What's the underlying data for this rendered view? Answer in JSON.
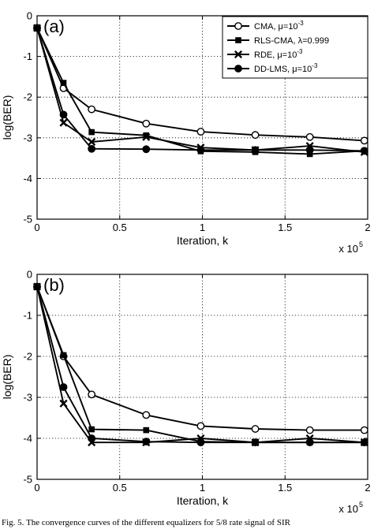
{
  "chart_data": [
    {
      "type": "line",
      "panel_label": "(a)",
      "xlabel": "Iteration, k",
      "ylabel": "log(BER)",
      "x_multiplier": "x 10",
      "x_multiplier_exponent": "5",
      "xlim": [
        0,
        2
      ],
      "ylim": [
        -5,
        0
      ],
      "xticks": [
        0,
        0.5,
        1,
        1.5,
        2
      ],
      "xtick_labels": [
        "0",
        "0.5",
        "1",
        "1.5",
        "2"
      ],
      "yticks": [
        0,
        -1,
        -2,
        -3,
        -4,
        -5
      ],
      "ytick_labels": [
        "0",
        "-1",
        "-2",
        "-3",
        "-4",
        "-5"
      ],
      "grid": true,
      "legend_position": "top-right",
      "series": [
        {
          "name": "CMA, μ=10",
          "superscript": "-3",
          "marker": "open-circle",
          "x": [
            0,
            0.16,
            0.33,
            0.66,
            0.99,
            1.32,
            1.65,
            1.98
          ],
          "y": [
            -0.3,
            -1.78,
            -2.3,
            -2.65,
            -2.85,
            -2.93,
            -2.98,
            -3.07
          ]
        },
        {
          "name": "RLS-CMA, λ=0.999",
          "superscript": "",
          "marker": "square",
          "x": [
            0,
            0.16,
            0.33,
            0.66,
            0.99,
            1.32,
            1.65,
            1.98
          ],
          "y": [
            -0.3,
            -1.65,
            -2.86,
            -2.94,
            -3.33,
            -3.35,
            -3.4,
            -3.32
          ]
        },
        {
          "name": "RDE, μ=10",
          "superscript": "-3",
          "marker": "x",
          "x": [
            0,
            0.16,
            0.33,
            0.66,
            0.99,
            1.32,
            1.65,
            1.98
          ],
          "y": [
            -0.3,
            -2.63,
            -3.1,
            -2.98,
            -3.24,
            -3.3,
            -3.2,
            -3.35
          ]
        },
        {
          "name": "DD-LMS, μ=10",
          "superscript": "-3",
          "marker": "filled-circle",
          "x": [
            0,
            0.16,
            0.33,
            0.66,
            0.99,
            1.32,
            1.65,
            1.98
          ],
          "y": [
            -0.3,
            -2.43,
            -3.27,
            -3.28,
            -3.3,
            -3.3,
            -3.3,
            -3.32
          ]
        }
      ]
    },
    {
      "type": "line",
      "panel_label": "(b)",
      "xlabel": "Iteration, k",
      "ylabel": "log(BER)",
      "x_multiplier": "x 10",
      "x_multiplier_exponent": "5",
      "xlim": [
        0,
        2
      ],
      "ylim": [
        -5,
        0
      ],
      "xticks": [
        0,
        0.5,
        1,
        1.5,
        2
      ],
      "xtick_labels": [
        "0",
        "0.5",
        "1",
        "1.5",
        "2"
      ],
      "yticks": [
        0,
        -1,
        -2,
        -3,
        -4,
        -5
      ],
      "ytick_labels": [
        "0",
        "-1",
        "-2",
        "-3",
        "-4",
        "-5"
      ],
      "grid": true,
      "series": [
        {
          "marker": "open-circle",
          "x": [
            0,
            0.16,
            0.33,
            0.66,
            0.99,
            1.32,
            1.65,
            1.98
          ],
          "y": [
            -0.3,
            -2.0,
            -2.93,
            -3.43,
            -3.7,
            -3.77,
            -3.8,
            -3.8
          ]
        },
        {
          "marker": "square",
          "x": [
            0,
            0.16,
            0.33,
            0.66,
            0.99,
            1.32,
            1.65,
            1.98
          ],
          "y": [
            -0.3,
            -1.97,
            -3.78,
            -3.8,
            -4.08,
            -4.1,
            -4.1,
            -4.1
          ]
        },
        {
          "marker": "x",
          "x": [
            0,
            0.16,
            0.33,
            0.66,
            0.99,
            1.32,
            1.65,
            1.98
          ],
          "y": [
            -0.3,
            -3.15,
            -4.1,
            -4.1,
            -4.0,
            -4.1,
            -4.0,
            -4.1
          ]
        },
        {
          "marker": "filled-circle",
          "x": [
            0,
            0.16,
            0.33,
            0.66,
            0.99,
            1.32,
            1.65,
            1.98
          ],
          "y": [
            -0.3,
            -2.75,
            -4.0,
            -4.08,
            -4.1,
            -4.1,
            -4.1,
            -4.1
          ]
        }
      ]
    }
  ],
  "caption": "Fig. 5.   The convergence curves of the different equalizers for 5/8 rate signal of SIR"
}
